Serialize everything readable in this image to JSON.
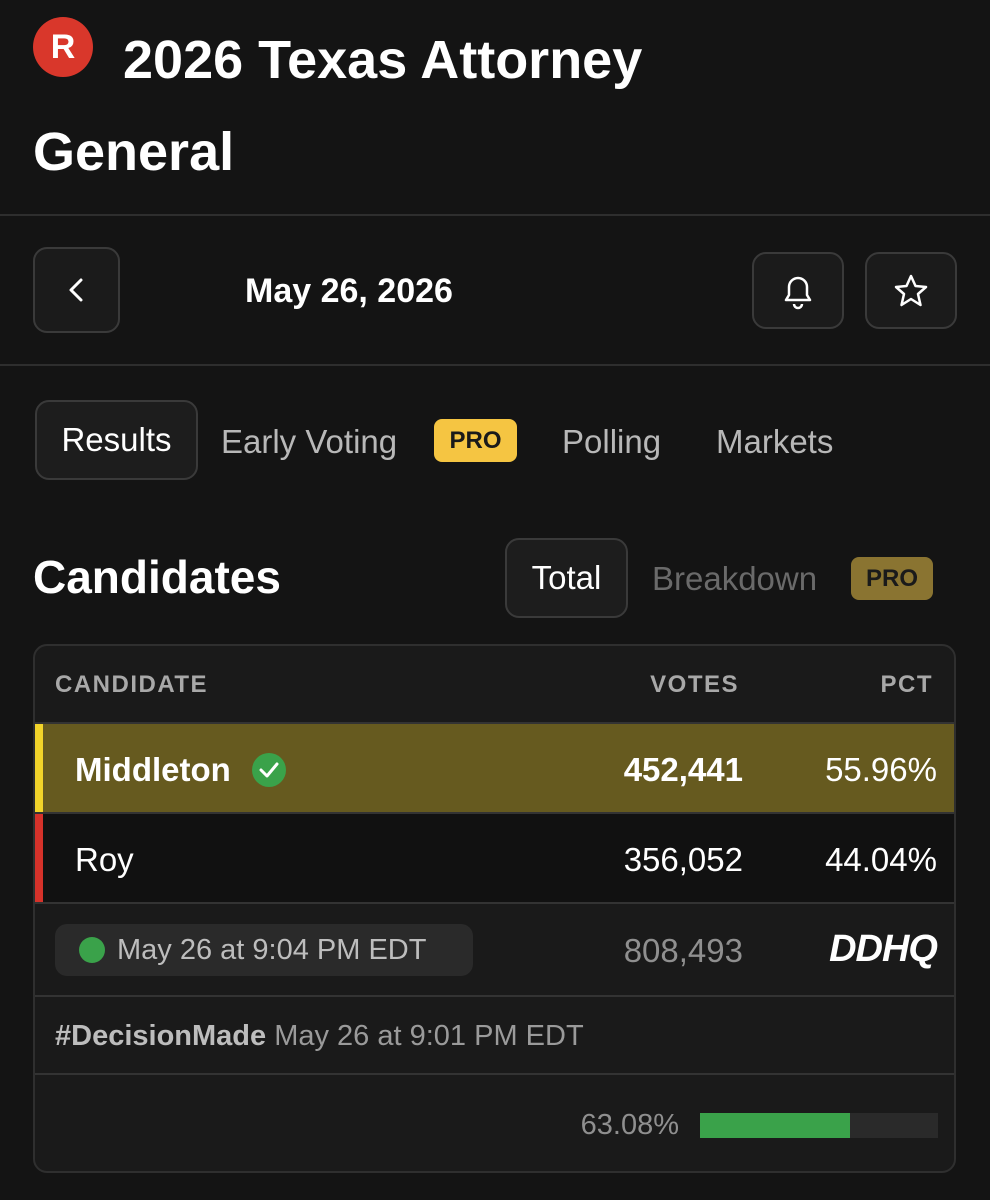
{
  "header": {
    "logo": "R",
    "title": "2026 Texas Attorney General"
  },
  "nav": {
    "date": "May 26, 2026"
  },
  "tabs": [
    {
      "label": "Results"
    },
    {
      "label": "Early Voting",
      "badge": "PRO"
    },
    {
      "label": "Polling"
    },
    {
      "label": "Markets"
    }
  ],
  "section": {
    "title": "Candidates",
    "toggle": [
      {
        "label": "Total"
      },
      {
        "label": "Breakdown",
        "badge": "PRO"
      }
    ]
  },
  "table": {
    "headers": [
      "CANDIDATE",
      "VOTES",
      "PCT"
    ],
    "rows": [
      [
        "Middleton",
        "452,441",
        "55.96%"
      ],
      [
        "Roy",
        "356,052",
        "44.04%"
      ]
    ],
    "updated": "May 26 at 9:04 PM EDT",
    "total_votes": "808,493",
    "source": "DDHQ",
    "decision_tag": "#DecisionMade",
    "decision_time": "May 26 at 9:01 PM EDT",
    "reporting": {
      "value": 63.08,
      "label": "63.08%"
    }
  }
}
